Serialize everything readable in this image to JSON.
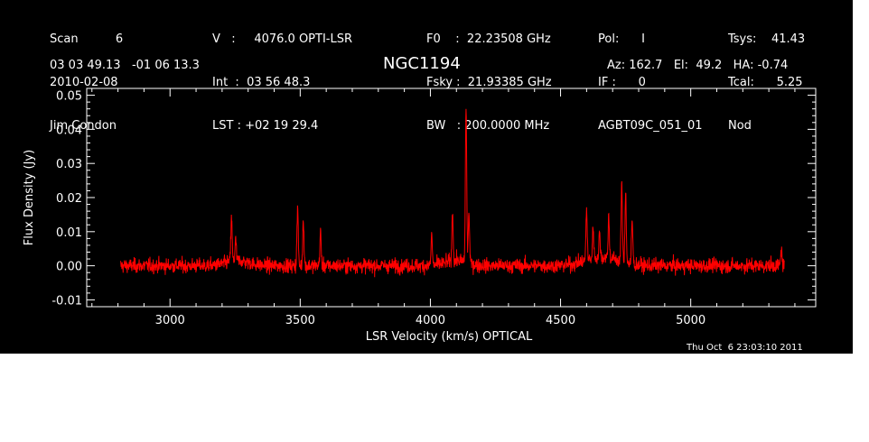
{
  "header": {
    "col1": [
      "Scan          6",
      "2010-02-08",
      "Jim Condon"
    ],
    "col2": [
      "V   :     4076.0 OPTI-LSR",
      "Int  :  03 56 48.3",
      "LST : +02 19 29.4"
    ],
    "col3": [
      "F0    :  22.23508 GHz",
      "Fsky :  21.93385 GHz",
      "BW   : 200.0000 MHz"
    ],
    "col4": [
      "Pol:      I",
      "IF :      0",
      "AGBT09C_051_01"
    ],
    "col5": [
      "Tsys:    41.43",
      "Tcal:      5.25",
      "Nod"
    ],
    "coords": "03 03 49.13   -01 06 13.3",
    "source": "NGC1194",
    "azel": "Az: 162.7   El:  49.2   HA: -0.74",
    "timestamp": "Thu Oct  6 23:03:10 2011"
  },
  "colors": {
    "background": "#000000",
    "axes": "#ffffff",
    "trace": "#ff0000"
  },
  "chart_data": {
    "type": "line",
    "title": "NGC1194",
    "xlabel": "LSR Velocity (km/s) OPTICAL",
    "ylabel": "Flux Density (Jy)",
    "xlim": [
      2680,
      5480
    ],
    "ylim": [
      -0.012,
      0.052
    ],
    "xticks": [
      3000,
      3500,
      4000,
      4500,
      5000
    ],
    "xtick_labels": [
      "3000",
      "3500",
      "4000",
      "4500",
      "5000"
    ],
    "yticks": [
      -0.01,
      0.0,
      0.01,
      0.02,
      0.03,
      0.04,
      0.05
    ],
    "ytick_labels": [
      "-0.01",
      "0.00",
      "0.01",
      "0.02",
      "0.03",
      "0.04",
      "0.05"
    ],
    "grid": false,
    "series": [
      {
        "values_x_range": [
          2810,
          5360
        ],
        "baseline": 0.0,
        "noise_rms": 0.0015,
        "peaks": [
          {
            "x": 3236,
            "y": 0.013
          },
          {
            "x": 3252,
            "y": 0.006
          },
          {
            "x": 3490,
            "y": 0.017
          },
          {
            "x": 3512,
            "y": 0.014
          },
          {
            "x": 3578,
            "y": 0.01
          },
          {
            "x": 4005,
            "y": 0.009
          },
          {
            "x": 4085,
            "y": 0.014
          },
          {
            "x": 4137,
            "y": 0.046
          },
          {
            "x": 4148,
            "y": 0.015
          },
          {
            "x": 4600,
            "y": 0.015
          },
          {
            "x": 4625,
            "y": 0.009
          },
          {
            "x": 4650,
            "y": 0.007
          },
          {
            "x": 4685,
            "y": 0.012
          },
          {
            "x": 4735,
            "y": 0.023
          },
          {
            "x": 4750,
            "y": 0.021
          },
          {
            "x": 4775,
            "y": 0.013
          },
          {
            "x": 5348,
            "y": 0.005
          }
        ]
      }
    ]
  }
}
